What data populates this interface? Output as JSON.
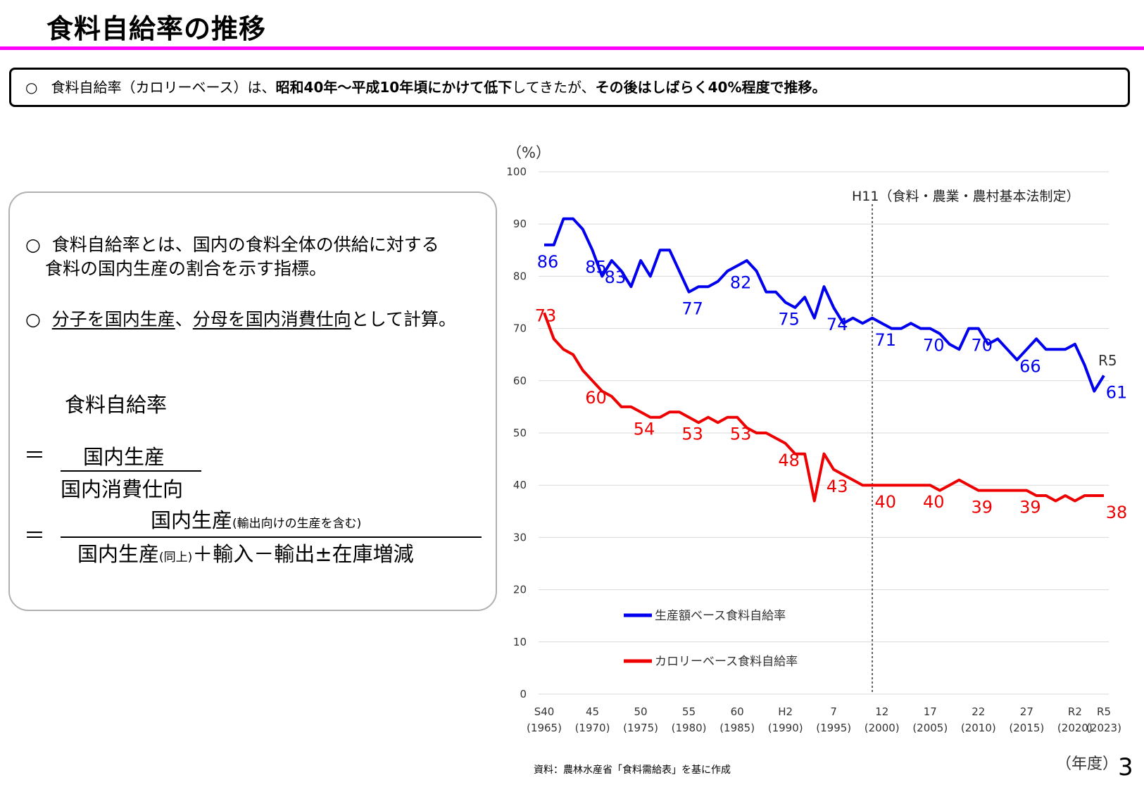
{
  "header": {
    "title": "食料自給率の推移",
    "summary": {
      "bullet": "○",
      "p1": "食料自給率（カロリーベース）は、",
      "b1": "昭和40年～平成10年頃にかけて低下",
      "p2": "してきたが、",
      "b2": "その後はしばらく40%程度で推移。"
    }
  },
  "definition": {
    "bullet": "○",
    "line1": "食料自給率とは、国内の食料全体の供給に対する",
    "line2": "食料の国内生産の割合を示す指標。",
    "line3_a": "分子を国内生産",
    "line3_b": "、",
    "line3_c": "分母を国内消費仕向",
    "line3_d": "として計算。",
    "formula_label": "食料自給率",
    "eq": "＝",
    "f1_num": "国内生産",
    "f1_den": "国内消費仕向",
    "f2_num": "国内生産",
    "f2_num_note": "(輸出向けの生産を含む)",
    "f2_den_a": "国内生産",
    "f2_den_note": "(同上)",
    "f2_den_b": "＋輸入－輸出±在庫増減"
  },
  "chart_data": {
    "type": "line",
    "ylabel": "（%）",
    "xlabel": "（年度）",
    "ylim": [
      0,
      100
    ],
    "yticks": [
      0,
      10,
      20,
      30,
      40,
      50,
      60,
      70,
      80,
      90,
      100
    ],
    "grid": true,
    "years": [
      1965,
      1966,
      1967,
      1968,
      1969,
      1970,
      1971,
      1972,
      1973,
      1974,
      1975,
      1976,
      1977,
      1978,
      1979,
      1980,
      1981,
      1982,
      1983,
      1984,
      1985,
      1986,
      1987,
      1988,
      1989,
      1990,
      1991,
      1992,
      1993,
      1994,
      1995,
      1996,
      1997,
      1998,
      1999,
      2000,
      2001,
      2002,
      2003,
      2004,
      2005,
      2006,
      2007,
      2008,
      2009,
      2010,
      2011,
      2012,
      2013,
      2014,
      2015,
      2016,
      2017,
      2018,
      2019,
      2020,
      2021,
      2022,
      2023
    ],
    "xticks": [
      {
        "year": 1965,
        "line1": "S40",
        "line2": "(1965)"
      },
      {
        "year": 1970,
        "line1": "45",
        "line2": "(1970)"
      },
      {
        "year": 1975,
        "line1": "50",
        "line2": "(1975)"
      },
      {
        "year": 1980,
        "line1": "55",
        "line2": "(1980)"
      },
      {
        "year": 1985,
        "line1": "60",
        "line2": "(1985)"
      },
      {
        "year": 1990,
        "line1": "H2",
        "line2": "(1990)"
      },
      {
        "year": 1995,
        "line1": "7",
        "line2": "(1995)"
      },
      {
        "year": 2000,
        "line1": "12",
        "line2": "(2000)"
      },
      {
        "year": 2005,
        "line1": "17",
        "line2": "(2005)"
      },
      {
        "year": 2010,
        "line1": "22",
        "line2": "(2010)"
      },
      {
        "year": 2015,
        "line1": "27",
        "line2": "(2015)"
      },
      {
        "year": 2020,
        "line1": "R2",
        "line2": "(2020)"
      },
      {
        "year": 2023,
        "line1": "R5",
        "line2": "(2023)"
      }
    ],
    "series": [
      {
        "name": "生産額ベース食料自給率",
        "color": "#0000ee",
        "values": [
          86,
          86,
          91,
          91,
          89,
          85,
          80,
          83,
          81,
          78,
          83,
          80,
          85,
          85,
          81,
          77,
          78,
          78,
          79,
          81,
          82,
          83,
          81,
          77,
          77,
          75,
          74,
          76,
          72,
          78,
          74,
          71,
          72,
          71,
          72,
          71,
          70,
          70,
          71,
          70,
          70,
          69,
          67,
          66,
          70,
          70,
          67,
          68,
          66,
          64,
          66,
          68,
          66,
          66,
          66,
          67,
          63,
          58,
          61
        ],
        "labels": [
          {
            "year": 1965,
            "value": 86
          },
          {
            "year": 1970,
            "value": 85
          },
          {
            "year": 1972,
            "value": 83
          },
          {
            "year": 1980,
            "value": 77
          },
          {
            "year": 1985,
            "value": 82
          },
          {
            "year": 1990,
            "value": 75
          },
          {
            "year": 1995,
            "value": 74
          },
          {
            "year": 2000,
            "value": 71
          },
          {
            "year": 2005,
            "value": 70
          },
          {
            "year": 2010,
            "value": 70
          },
          {
            "year": 2015,
            "value": 66
          },
          {
            "year": 2023,
            "value": 61
          }
        ]
      },
      {
        "name": "カロリーベース食料自給率",
        "color": "#ee0000",
        "values": [
          73,
          68,
          66,
          65,
          62,
          60,
          58,
          57,
          55,
          55,
          54,
          53,
          53,
          54,
          54,
          53,
          52,
          53,
          52,
          53,
          53,
          51,
          50,
          50,
          49,
          48,
          46,
          46,
          37,
          46,
          43,
          42,
          41,
          40,
          40,
          40,
          40,
          40,
          40,
          40,
          40,
          39,
          40,
          41,
          40,
          39,
          39,
          39,
          39,
          39,
          39,
          38,
          38,
          37,
          38,
          37,
          38,
          38,
          38
        ],
        "labels": [
          {
            "year": 1965,
            "value": 73
          },
          {
            "year": 1970,
            "value": 60
          },
          {
            "year": 1975,
            "value": 54
          },
          {
            "year": 1980,
            "value": 53
          },
          {
            "year": 1985,
            "value": 53
          },
          {
            "year": 1990,
            "value": 48
          },
          {
            "year": 1995,
            "value": 43
          },
          {
            "year": 2000,
            "value": 40
          },
          {
            "year": 2005,
            "value": 40
          },
          {
            "year": 2010,
            "value": 39
          },
          {
            "year": 2015,
            "value": 39
          },
          {
            "year": 2023,
            "value": 38
          }
        ]
      }
    ],
    "annotations": {
      "vline_year": 1999,
      "vline_label": "H11（食料・農業・農村基本法制定）",
      "end_label": "R5"
    }
  },
  "footer": {
    "source": "資料：農林水産省「食料需給表」を基に作成",
    "page": "3"
  }
}
